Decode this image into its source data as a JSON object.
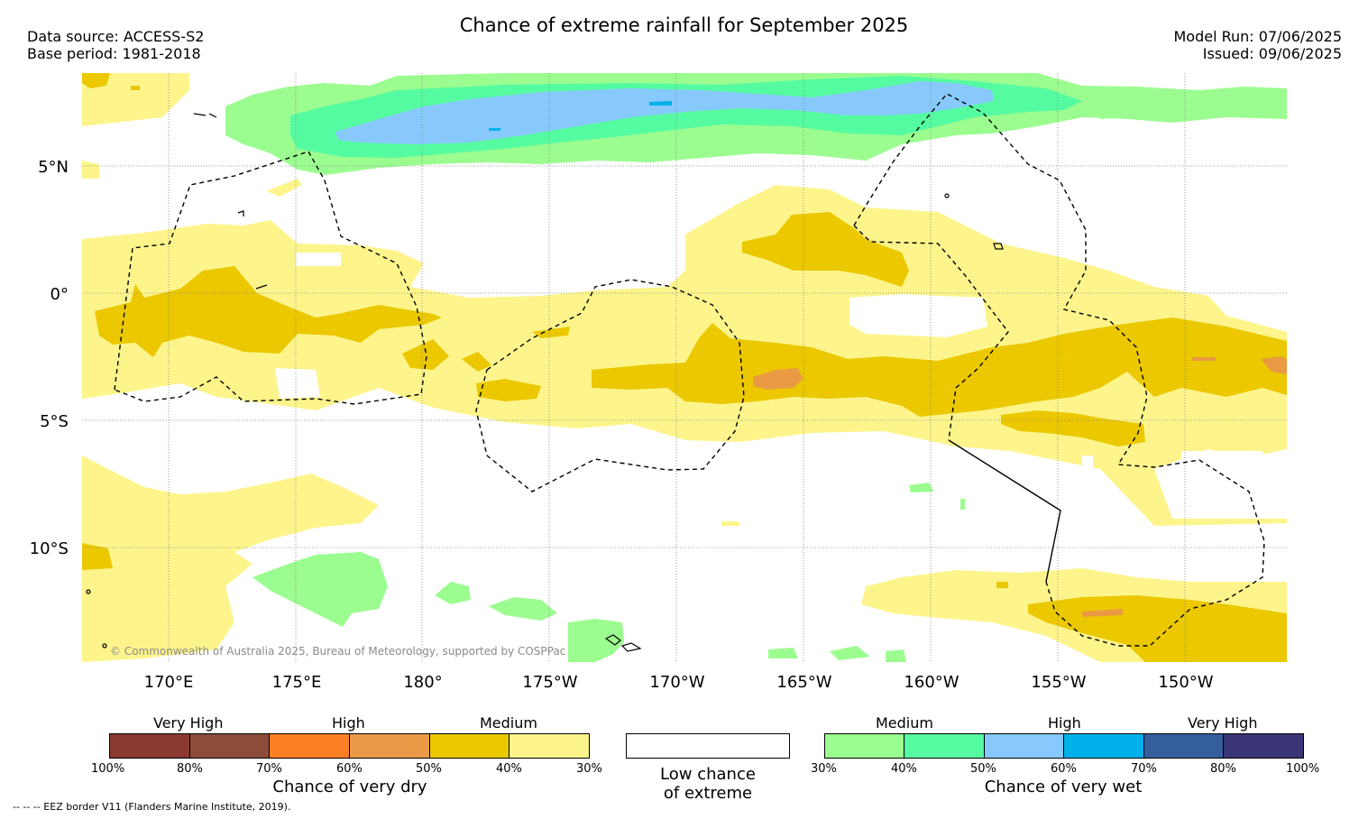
{
  "header": {
    "title": "Chance of extreme rainfall for September 2025",
    "data_source": "Data source: ACCESS-S2",
    "base_period": "Base period: 1981-2018",
    "model_run": "Model Run: 07/06/2025",
    "issued": "Issued: 09/06/2025"
  },
  "map": {
    "longitude_labels": [
      "170°E",
      "175°E",
      "180°",
      "175°W",
      "170°W",
      "165°W",
      "160°W",
      "155°W",
      "150°W"
    ],
    "latitude_labels": [
      "5°N",
      "0°",
      "5°S",
      "10°S"
    ],
    "copyright": "© Commonwealth of Australia 2025, Bureau of Meteorology, supported by COSPPac",
    "colors": {
      "dry_30_40": "#fdf58c",
      "dry_40_50": "#ebc800",
      "dry_50_60": "#e99a42",
      "wet_30_40": "#9bfd8f",
      "wet_40_50": "#55fba1",
      "wet_50_60": "#87c9fc",
      "wet_60_70": "#00b1e9",
      "eez_border": "#000000",
      "gridlines": "#808080"
    }
  },
  "legend": {
    "dry": {
      "levels": [
        "Very High",
        "High",
        "Medium"
      ],
      "ticks": [
        "100%",
        "80%",
        "70%",
        "60%",
        "50%",
        "40%",
        "30%"
      ],
      "colors": [
        "#8b3a32",
        "#8c4c39",
        "#fd7f24",
        "#eb9a48",
        "#ebc800",
        "#fdf58c"
      ],
      "caption": "Chance of very dry"
    },
    "low": {
      "caption_line1": "Low chance",
      "caption_line2": "of extreme",
      "color": "#ffffff"
    },
    "wet": {
      "levels": [
        "Medium",
        "High",
        "Very High"
      ],
      "ticks": [
        "30%",
        "40%",
        "50%",
        "60%",
        "70%",
        "80%",
        "100%"
      ],
      "colors": [
        "#9bfd8f",
        "#55fba1",
        "#87c9fc",
        "#00b1e9",
        "#355f9c",
        "#3a3676"
      ],
      "caption": "Chance of very wet"
    }
  },
  "footer": {
    "eez_note": "--  --  -- EEZ border V11 (Flanders Marine Institute, 2019)."
  }
}
